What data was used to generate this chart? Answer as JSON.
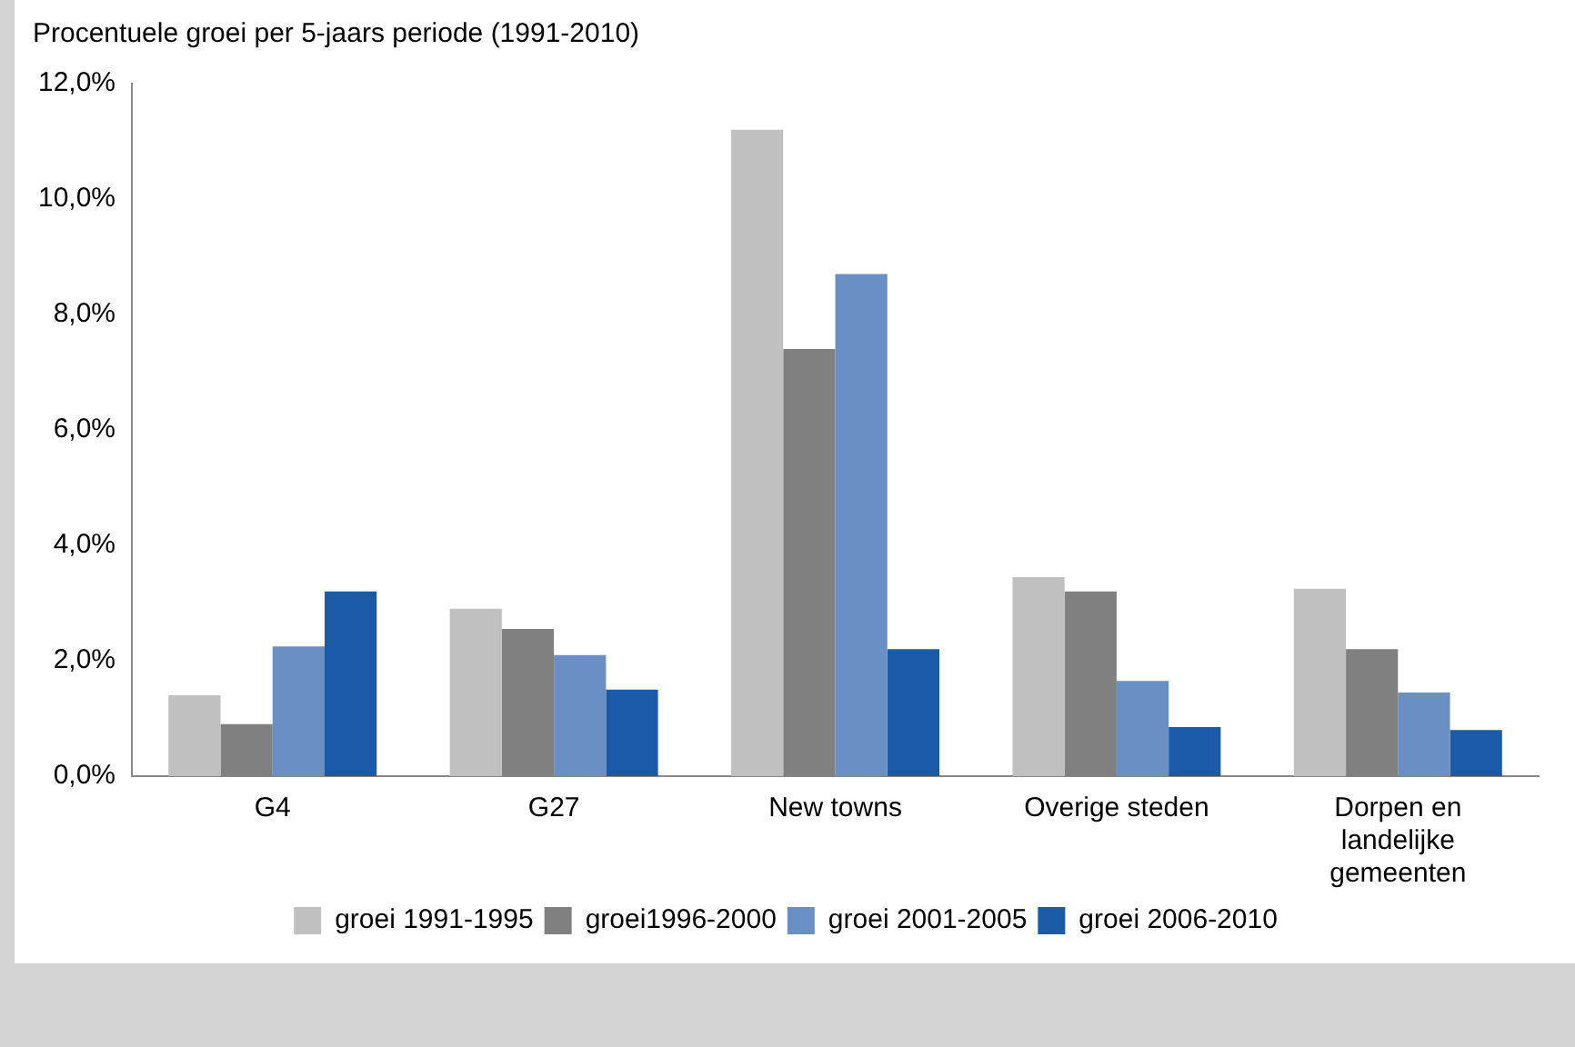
{
  "chart_data": {
    "type": "bar",
    "title": "Procentuele groei per 5-jaars periode (1991-2010)",
    "categories": [
      "G4",
      "G27",
      "New towns",
      "Overige steden",
      "Dorpen en landelijke gemeenten"
    ],
    "series": [
      {
        "name": "groei 1991-1995",
        "color": "#c0c0c0",
        "values": [
          1.4,
          2.9,
          11.2,
          3.45,
          3.25
        ]
      },
      {
        "name": "groei1996-2000",
        "color": "#808080",
        "values": [
          0.9,
          2.55,
          7.4,
          3.2,
          2.2
        ]
      },
      {
        "name": "groei 2001-2005",
        "color": "#6a8fc4",
        "values": [
          2.25,
          2.1,
          8.7,
          1.65,
          1.45
        ]
      },
      {
        "name": "groei 2006-2010",
        "color": "#1a5aa6",
        "values": [
          3.2,
          1.5,
          2.2,
          0.85,
          0.8
        ]
      }
    ],
    "ylim": [
      0,
      12
    ],
    "yticks": [
      {
        "value": 0,
        "label": "0,0%"
      },
      {
        "value": 2,
        "label": "2,0%"
      },
      {
        "value": 4,
        "label": "4,0%"
      },
      {
        "value": 6,
        "label": "6,0%"
      },
      {
        "value": 8,
        "label": "8,0%"
      },
      {
        "value": 10,
        "label": "10,0%"
      },
      {
        "value": 12,
        "label": "12,0%"
      }
    ],
    "grid": false,
    "legend": "bottom"
  }
}
